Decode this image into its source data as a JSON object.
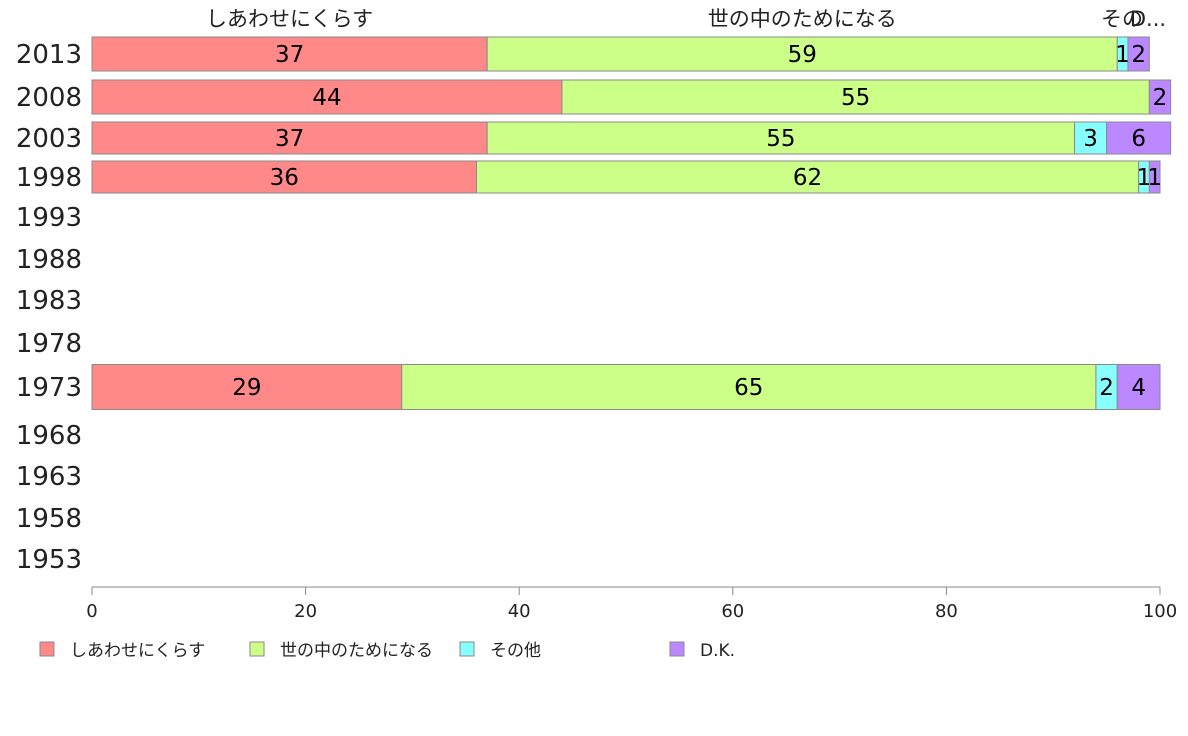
{
  "chart_data": {
    "type": "bar",
    "orientation": "horizontal",
    "stacked": true,
    "categories": [
      "2013",
      "2008",
      "2003",
      "1998",
      "1993",
      "1988",
      "1983",
      "1978",
      "1973",
      "1968",
      "1963",
      "1958",
      "1953"
    ],
    "series": [
      {
        "name": "しあわせにくらす",
        "color": "#ff8888",
        "values": [
          37,
          44,
          37,
          36,
          null,
          null,
          null,
          null,
          29,
          null,
          null,
          null,
          null
        ]
      },
      {
        "name": "世の中のためになる",
        "color": "#ccff88",
        "values": [
          59,
          55,
          55,
          62,
          null,
          null,
          null,
          null,
          65,
          null,
          null,
          null,
          null
        ]
      },
      {
        "name": "その他",
        "color": "#88ffff",
        "values": [
          1,
          null,
          3,
          1,
          null,
          null,
          null,
          null,
          2,
          null,
          null,
          null,
          null
        ]
      },
      {
        "name": "D.K.",
        "color": "#bb88ff",
        "values": [
          2,
          2,
          6,
          1,
          null,
          null,
          null,
          null,
          4,
          null,
          null,
          null,
          null
        ]
      }
    ],
    "top_labels": [
      "しあわせにくらす",
      "世の中のためになる",
      "その",
      "D..."
    ],
    "xlim": [
      0,
      100
    ],
    "xticks": [
      0,
      20,
      40,
      60,
      80,
      100
    ],
    "legend_position": "bottom"
  }
}
